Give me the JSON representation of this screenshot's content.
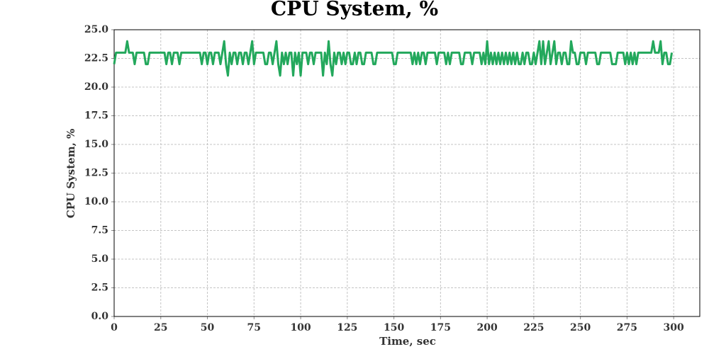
{
  "chart_data": {
    "type": "line",
    "title": "CPU System, %",
    "x_label": "Time, sec",
    "y_label": "CPU System, %",
    "x": [
      0,
      1,
      2,
      3,
      4,
      5,
      6,
      7,
      8,
      9,
      10,
      11,
      12,
      13,
      14,
      15,
      16,
      17,
      18,
      19,
      20,
      21,
      22,
      23,
      24,
      25,
      26,
      27,
      28,
      29,
      30,
      31,
      32,
      33,
      34,
      35,
      36,
      37,
      38,
      39,
      40,
      41,
      42,
      43,
      44,
      45,
      46,
      47,
      48,
      49,
      50,
      51,
      52,
      53,
      54,
      55,
      56,
      57,
      58,
      59,
      60,
      61,
      62,
      63,
      64,
      65,
      66,
      67,
      68,
      69,
      70,
      71,
      72,
      73,
      74,
      75,
      76,
      77,
      78,
      79,
      80,
      81,
      82,
      83,
      84,
      85,
      86,
      87,
      88,
      89,
      90,
      91,
      92,
      93,
      94,
      95,
      96,
      97,
      98,
      99,
      100,
      101,
      102,
      103,
      104,
      105,
      106,
      107,
      108,
      109,
      110,
      111,
      112,
      113,
      114,
      115,
      116,
      117,
      118,
      119,
      120,
      121,
      122,
      123,
      124,
      125,
      126,
      127,
      128,
      129,
      130,
      131,
      132,
      133,
      134,
      135,
      136,
      137,
      138,
      139,
      140,
      141,
      142,
      143,
      144,
      145,
      146,
      147,
      148,
      149,
      150,
      151,
      152,
      153,
      154,
      155,
      156,
      157,
      158,
      159,
      160,
      161,
      162,
      163,
      164,
      165,
      166,
      167,
      168,
      169,
      170,
      171,
      172,
      173,
      174,
      175,
      176,
      177,
      178,
      179,
      180,
      181,
      182,
      183,
      184,
      185,
      186,
      187,
      188,
      189,
      190,
      191,
      192,
      193,
      194,
      195,
      196,
      197,
      198,
      199,
      200,
      201,
      202,
      203,
      204,
      205,
      206,
      207,
      208,
      209,
      210,
      211,
      212,
      213,
      214,
      215,
      216,
      217,
      218,
      219,
      220,
      221,
      222,
      223,
      224,
      225,
      226,
      227,
      228,
      229,
      230,
      231,
      232,
      233,
      234,
      235,
      236,
      237,
      238,
      239,
      240,
      241,
      242,
      243,
      244,
      245,
      246,
      247,
      248,
      249,
      250,
      251,
      252,
      253,
      254,
      255,
      256,
      257,
      258,
      259,
      260,
      261,
      262,
      263,
      264,
      265,
      266,
      267,
      268,
      269,
      270,
      271,
      272,
      273,
      274,
      275,
      276,
      277,
      278,
      279,
      280,
      281,
      282,
      283,
      284,
      285,
      286,
      287,
      288,
      289,
      290,
      291,
      292,
      293,
      294,
      295,
      296,
      297,
      298,
      299
    ],
    "series": [
      {
        "name": "CPU System",
        "color": "#23a85c",
        "values": [
          22,
          23,
          23,
          23,
          23,
          23,
          23,
          24,
          23,
          23,
          23,
          22,
          23,
          23,
          23,
          23,
          23,
          22,
          22,
          23,
          23,
          23,
          23,
          23,
          23,
          23,
          23,
          23,
          22,
          23,
          23,
          22,
          23,
          23,
          23,
          22,
          23,
          23,
          23,
          23,
          23,
          23,
          23,
          23,
          23,
          23,
          23,
          22,
          23,
          23,
          22,
          23,
          23,
          22,
          23,
          23,
          23,
          22,
          23,
          24,
          22,
          21,
          23,
          22,
          23,
          23,
          22,
          23,
          23,
          22,
          23,
          23,
          22,
          23,
          24,
          22,
          23,
          23,
          23,
          23,
          23,
          22,
          22,
          23,
          23,
          22,
          23,
          24,
          22,
          21,
          23,
          22,
          23,
          22,
          23,
          23,
          21,
          23,
          22,
          23,
          21,
          23,
          23,
          23,
          22,
          23,
          23,
          22,
          23,
          23,
          23,
          23,
          21,
          23,
          22,
          24,
          22,
          21,
          23,
          22,
          23,
          23,
          22,
          23,
          22,
          23,
          23,
          22,
          22,
          23,
          22,
          23,
          23,
          22,
          22,
          23,
          23,
          23,
          23,
          22,
          22,
          23,
          23,
          23,
          23,
          23,
          23,
          23,
          23,
          23,
          22,
          22,
          23,
          23,
          23,
          23,
          23,
          23,
          23,
          23,
          22,
          23,
          22,
          23,
          22,
          23,
          23,
          22,
          23,
          23,
          23,
          23,
          23,
          22,
          23,
          23,
          23,
          23,
          22,
          23,
          22,
          23,
          23,
          23,
          23,
          23,
          22,
          22,
          23,
          23,
          23,
          23,
          22,
          23,
          23,
          23,
          23,
          22,
          23,
          22,
          24,
          22,
          23,
          22,
          23,
          22,
          23,
          22,
          23,
          22,
          23,
          22,
          23,
          22,
          23,
          22,
          23,
          22,
          22,
          23,
          22,
          23,
          23,
          22,
          22,
          23,
          22,
          23,
          24,
          22,
          24,
          22,
          23,
          24,
          22,
          23,
          24,
          22,
          23,
          23,
          22,
          23,
          23,
          22,
          22,
          24,
          23,
          23,
          22,
          22,
          23,
          23,
          23,
          22,
          23,
          23,
          23,
          23,
          23,
          22,
          22,
          23,
          23,
          23,
          23,
          23,
          23,
          22,
          22,
          22,
          23,
          23,
          23,
          23,
          22,
          23,
          22,
          23,
          22,
          23,
          22,
          23,
          23,
          23,
          23,
          23,
          23,
          23,
          23,
          24,
          23,
          23,
          23,
          24,
          22,
          23,
          23,
          22,
          22,
          23
        ]
      }
    ],
    "xlim": [
      0,
      314
    ],
    "ylim": [
      0,
      25
    ],
    "xticks": [
      0,
      25,
      50,
      75,
      100,
      125,
      150,
      175,
      200,
      225,
      250,
      275,
      300
    ],
    "yticks": [
      {
        "value": 0,
        "label": "0.0"
      },
      2.5,
      {
        "value": 5,
        "label": "5.0"
      },
      7.5,
      {
        "value": 10,
        "label": "10.0"
      },
      12.5,
      {
        "value": 15,
        "label": "15.0"
      },
      17.5,
      {
        "value": 20,
        "label": "20.0"
      },
      22.5,
      {
        "value": 25,
        "label": "25.0"
      }
    ],
    "grid": true
  }
}
